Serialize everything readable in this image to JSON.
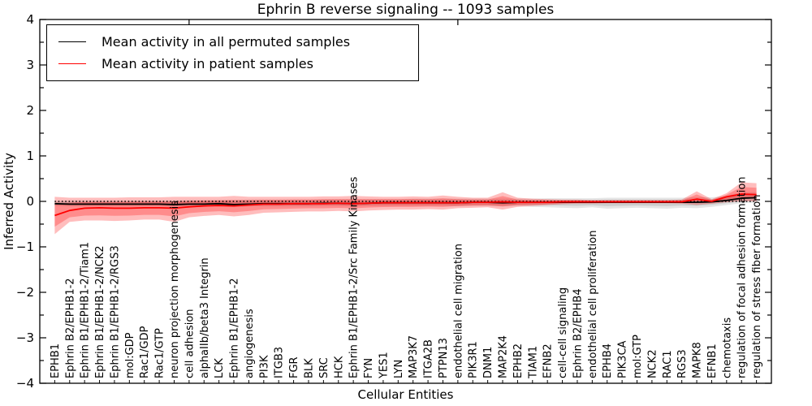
{
  "title": "Ephrin B reverse signaling -- 1093 samples",
  "axes": {
    "xlabel": "Cellular Entities",
    "ylabel": "Inferred Activity",
    "ytick_labels": [
      "4",
      "3",
      "2",
      "1",
      "0",
      "−1",
      "−2",
      "−3",
      "−4"
    ]
  },
  "legend": {
    "entries": [
      {
        "label": "Mean activity in all permuted samples",
        "color": "#000000"
      },
      {
        "label": "Mean activity in patient samples",
        "color": "#ff0000"
      }
    ]
  },
  "chart_data": {
    "type": "line",
    "title": "Ephrin B reverse signaling -- 1093 samples",
    "xlabel": "Cellular Entities",
    "ylabel": "Inferred Activity",
    "ylim": [
      -4,
      4
    ],
    "ytick_step": 1,
    "ytick_minor_step": 0.5,
    "grid": false,
    "legend_position": "upper left",
    "zero_line": {
      "y": 0,
      "style": "dotted",
      "color": "#000000"
    },
    "top_ticks_at": [
      9,
      27
    ],
    "categories": [
      "EPHB1",
      "Ephrin B2/EPHB1-2",
      "Ephrin B1/EPHB1-2/Tiam1",
      "Ephrin B1/EPHB1-2/NCK2",
      "Ephrin B1/EPHB1-2/RGS3",
      "mol:GDP",
      "Rac1/GDP",
      "Rac1/GTP",
      "neuron projection morphogenesis",
      "cell adhesion",
      "alphaIIb/beta3 Integrin",
      "LCK",
      "Ephrin B1/EPHB1-2",
      "angiogenesis",
      "PI3K",
      "ITGB3",
      "FGR",
      "BLK",
      "SRC",
      "HCK",
      "Ephrin B1/EPHB1-2/Src Family Kinases",
      "FYN",
      "YES1",
      "LYN",
      "MAP3K7",
      "ITGA2B",
      "PTPN13",
      "endothelial cell migration",
      "PIK3R1",
      "DNM1",
      "MAP2K4",
      "EPHB2",
      "TIAM1",
      "EFNB2",
      "cell-cell signaling",
      "Ephrin B2/EPHB4",
      "endothelial cell proliferation",
      "EPHB4",
      "PIK3CA",
      "mol:GTP",
      "NCK2",
      "RAC1",
      "RGS3",
      "MAPK8",
      "EFNB1",
      "chemotaxis",
      "regulation of focal adhesion formation",
      "regulation of stress fiber formation"
    ],
    "series": [
      {
        "name": "Mean activity in all permuted samples",
        "color": "#000000",
        "values": [
          -0.05,
          -0.06,
          -0.06,
          -0.06,
          -0.06,
          -0.06,
          -0.06,
          -0.06,
          -0.07,
          -0.06,
          -0.06,
          -0.05,
          -0.07,
          -0.06,
          -0.05,
          -0.05,
          -0.05,
          -0.05,
          -0.04,
          -0.04,
          -0.05,
          -0.04,
          -0.03,
          -0.03,
          -0.03,
          -0.03,
          -0.03,
          -0.03,
          -0.02,
          -0.02,
          -0.03,
          -0.02,
          -0.02,
          -0.02,
          -0.02,
          -0.02,
          -0.02,
          -0.02,
          -0.02,
          -0.02,
          -0.02,
          -0.02,
          -0.02,
          -0.02,
          -0.01,
          0.02,
          0.07,
          0.08
        ]
      },
      {
        "name": "Mean activity in patient samples",
        "color": "#ff0000",
        "values": [
          -0.31,
          -0.2,
          -0.15,
          -0.14,
          -0.15,
          -0.15,
          -0.14,
          -0.14,
          -0.15,
          -0.12,
          -0.1,
          -0.09,
          -0.1,
          -0.08,
          -0.06,
          -0.06,
          -0.05,
          -0.05,
          -0.05,
          -0.04,
          -0.05,
          -0.04,
          -0.03,
          -0.03,
          -0.03,
          -0.03,
          -0.03,
          -0.03,
          -0.02,
          -0.02,
          -0.01,
          -0.02,
          -0.02,
          -0.02,
          -0.01,
          -0.01,
          -0.01,
          -0.01,
          -0.01,
          -0.01,
          -0.01,
          -0.01,
          -0.01,
          0.05,
          0.0,
          0.1,
          0.16,
          0.15
        ]
      }
    ],
    "bands": [
      {
        "name": "permuted-range",
        "color": "#000000",
        "opacity": 0.1,
        "lo": [
          -0.1,
          -0.11,
          -0.11,
          -0.11,
          -0.11,
          -0.11,
          -0.11,
          -0.11,
          -0.12,
          -0.11,
          -0.11,
          -0.11,
          -0.12,
          -0.11,
          -0.11,
          -0.11,
          -0.11,
          -0.11,
          -0.1,
          -0.1,
          -0.11,
          -0.1,
          -0.1,
          -0.1,
          -0.1,
          -0.1,
          -0.1,
          -0.11,
          -0.1,
          -0.1,
          -0.11,
          -0.1,
          -0.12,
          -0.13,
          -0.14,
          -0.15,
          -0.13,
          -0.16,
          -0.15,
          -0.14,
          -0.15,
          -0.16,
          -0.14,
          -0.15,
          -0.12,
          -0.08,
          -0.04,
          -0.03
        ],
        "hi": [
          0.01,
          0.02,
          0.02,
          0.02,
          0.02,
          0.02,
          0.02,
          0.02,
          0.02,
          0.03,
          0.03,
          0.03,
          0.03,
          0.04,
          0.04,
          0.04,
          0.04,
          0.04,
          0.05,
          0.05,
          0.05,
          0.05,
          0.05,
          0.05,
          0.06,
          0.06,
          0.06,
          0.06,
          0.06,
          0.06,
          0.06,
          0.06,
          0.06,
          0.07,
          0.07,
          0.07,
          0.07,
          0.08,
          0.08,
          0.08,
          0.08,
          0.08,
          0.08,
          0.09,
          0.09,
          0.12,
          0.2,
          0.2
        ]
      },
      {
        "name": "patient-range",
        "color": "#ff0000",
        "opacity": 0.26,
        "lo": [
          -0.72,
          -0.45,
          -0.42,
          -0.42,
          -0.43,
          -0.42,
          -0.4,
          -0.4,
          -0.45,
          -0.35,
          -0.32,
          -0.3,
          -0.33,
          -0.3,
          -0.25,
          -0.24,
          -0.23,
          -0.22,
          -0.22,
          -0.21,
          -0.22,
          -0.2,
          -0.19,
          -0.18,
          -0.18,
          -0.17,
          -0.18,
          -0.15,
          -0.14,
          -0.13,
          -0.18,
          -0.12,
          -0.1,
          -0.08,
          -0.06,
          -0.05,
          -0.05,
          -0.04,
          -0.04,
          -0.04,
          -0.04,
          -0.04,
          -0.05,
          -0.08,
          -0.05,
          -0.02,
          0.0,
          0.0
        ],
        "hi": [
          0.1,
          0.08,
          0.08,
          0.08,
          0.08,
          0.09,
          0.09,
          0.09,
          0.1,
          0.1,
          0.1,
          0.1,
          0.12,
          0.1,
          0.1,
          0.1,
          0.1,
          0.1,
          0.11,
          0.11,
          0.12,
          0.11,
          0.1,
          0.1,
          0.11,
          0.1,
          0.13,
          0.1,
          0.08,
          0.08,
          0.2,
          0.08,
          0.06,
          0.05,
          0.04,
          0.04,
          0.03,
          0.03,
          0.03,
          0.03,
          0.03,
          0.03,
          0.04,
          0.22,
          0.05,
          0.18,
          0.42,
          0.4
        ]
      }
    ]
  }
}
